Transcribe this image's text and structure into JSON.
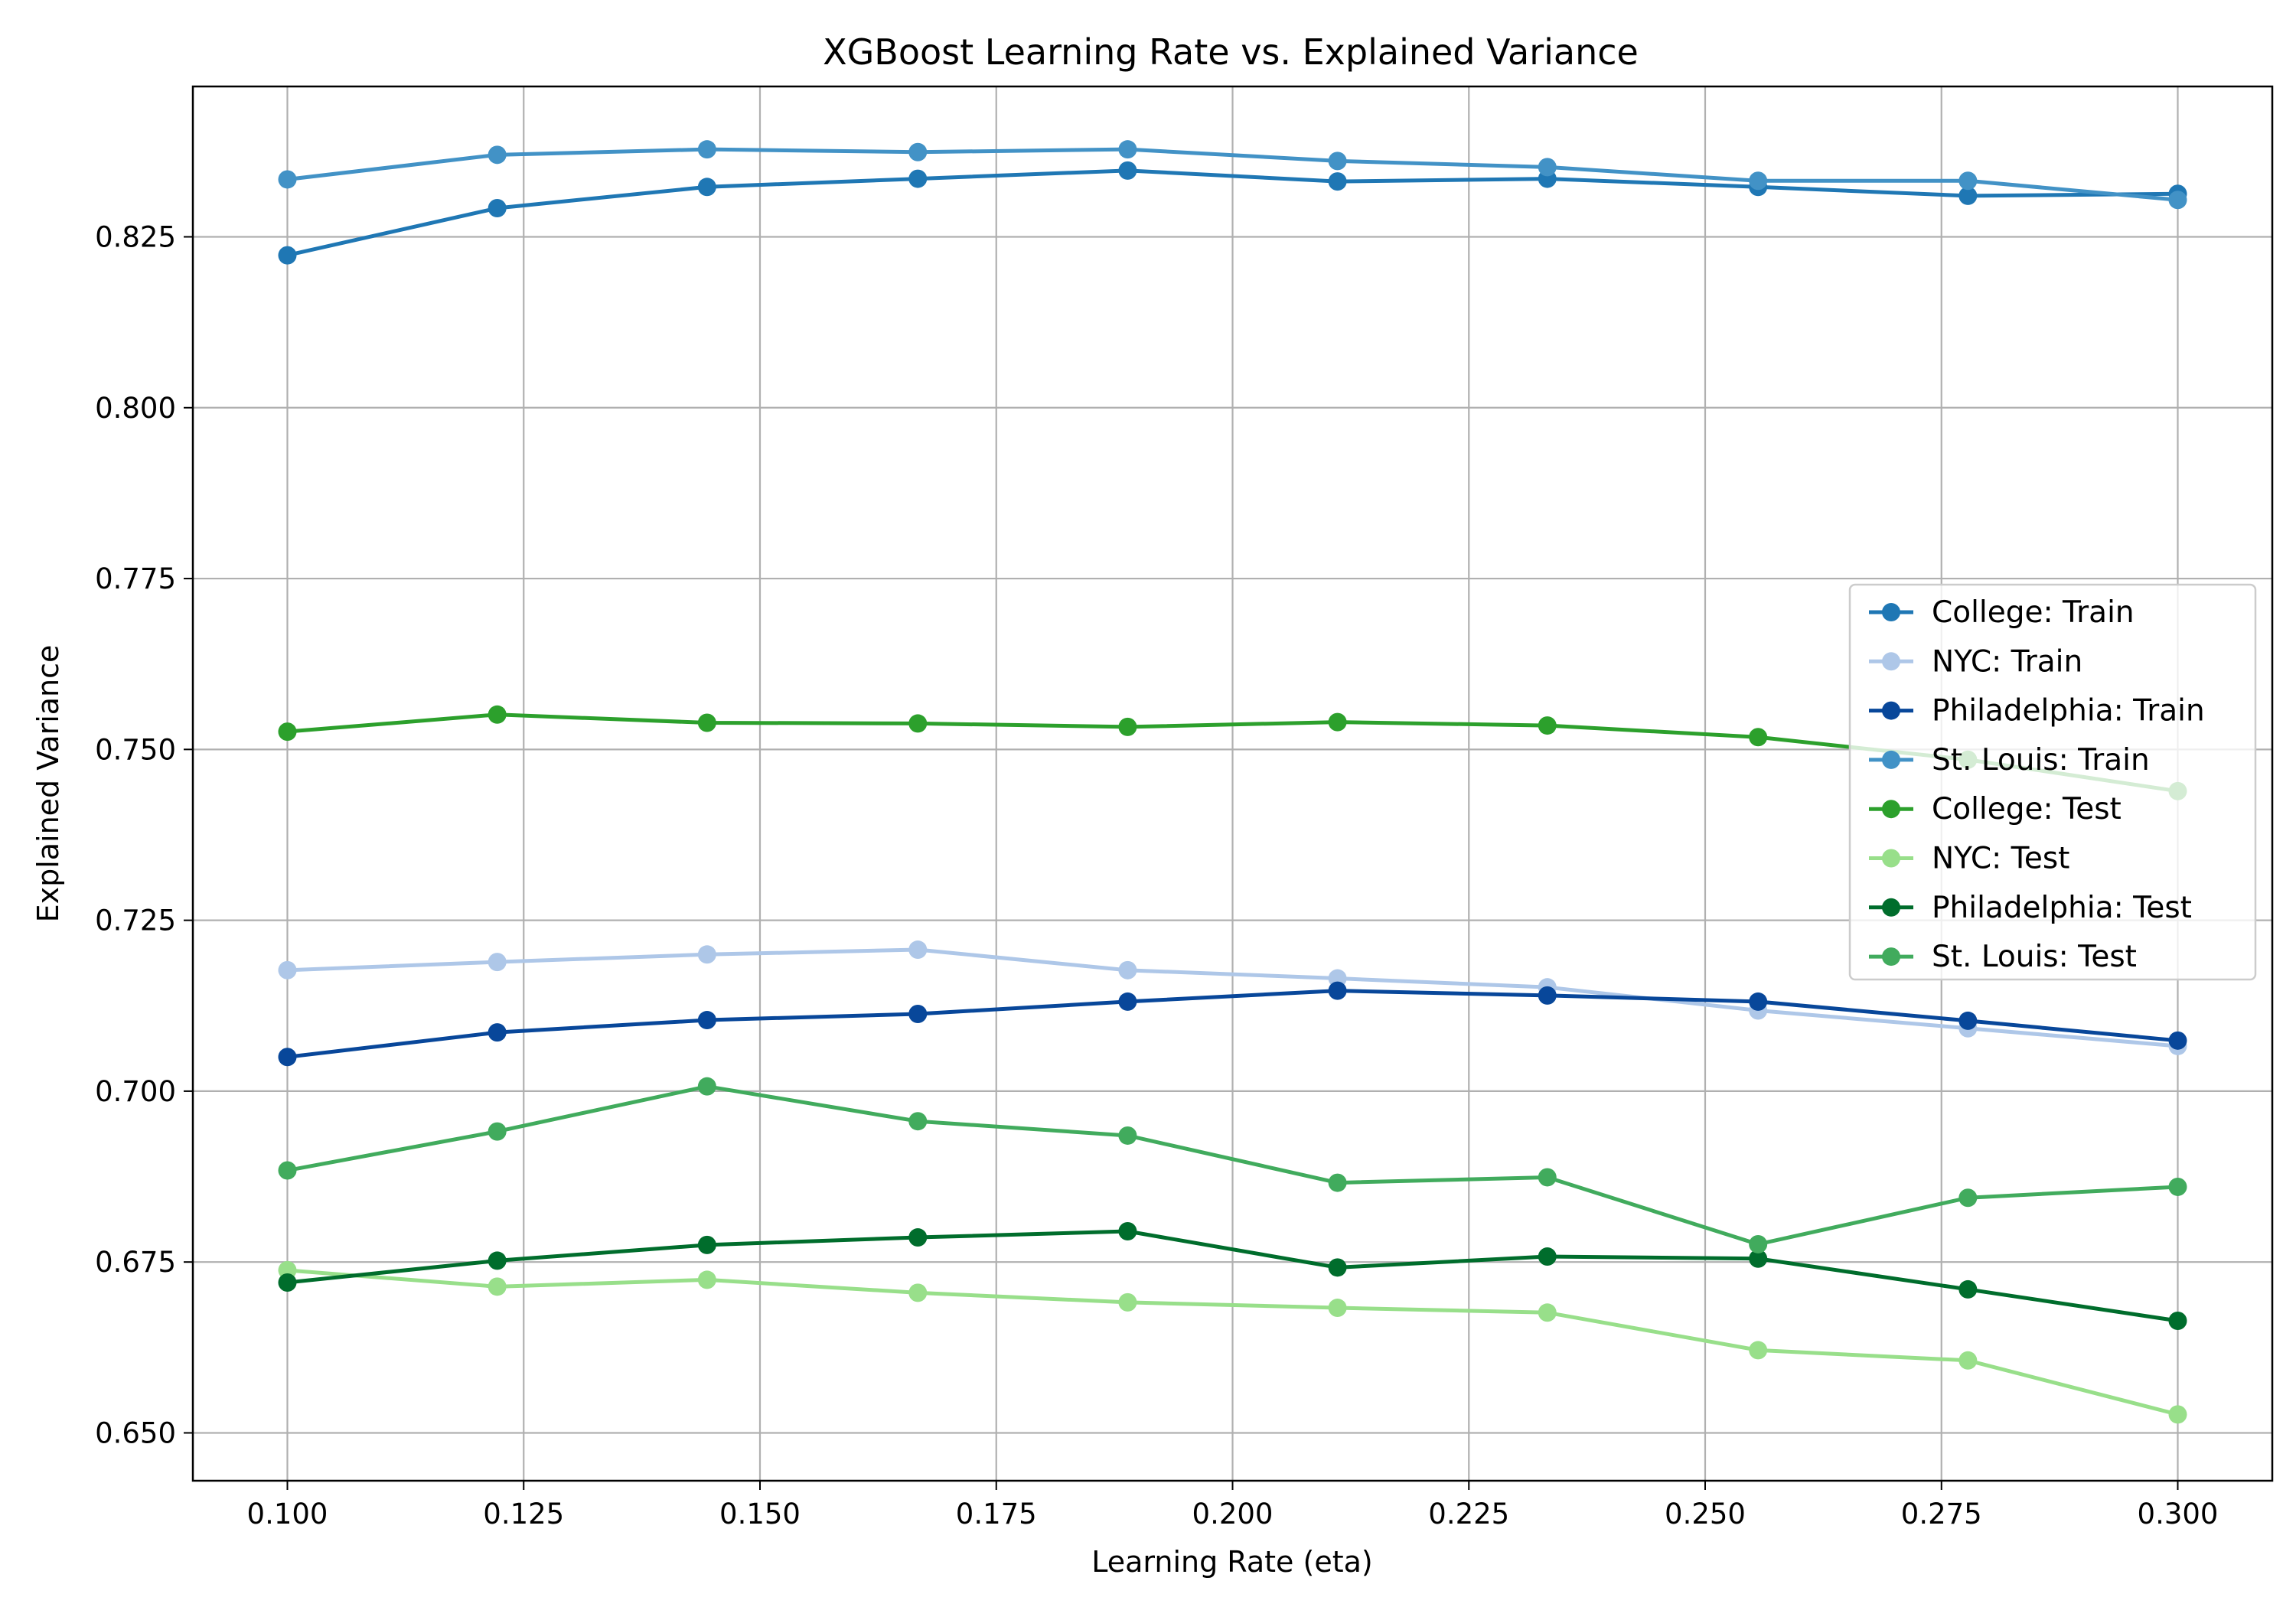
{
  "chart_data": {
    "type": "line",
    "title": "XGBoost Learning Rate vs. Explained Variance",
    "xlabel": "Learning Rate (eta)",
    "ylabel": "Explained Variance",
    "xlim": [
      0.09,
      0.31
    ],
    "ylim": [
      0.643,
      0.847
    ],
    "grid": true,
    "legend_position": "center-right",
    "x_ticks": [
      0.1,
      0.125,
      0.15,
      0.175,
      0.2,
      0.225,
      0.25,
      0.275,
      0.3
    ],
    "x_tick_labels": [
      "0.100",
      "0.125",
      "0.150",
      "0.175",
      "0.200",
      "0.225",
      "0.250",
      "0.275",
      "0.300"
    ],
    "y_ticks": [
      0.65,
      0.675,
      0.7,
      0.725,
      0.75,
      0.775,
      0.8,
      0.825
    ],
    "y_tick_labels": [
      "0.650",
      "0.675",
      "0.700",
      "0.725",
      "0.750",
      "0.775",
      "0.800",
      "0.825"
    ],
    "x": [
      0.1,
      0.1222,
      0.1444,
      0.1667,
      0.1889,
      0.2111,
      0.2333,
      0.2556,
      0.2778,
      0.3
    ],
    "series": [
      {
        "name": "College: Train",
        "color": "#1f77b4",
        "values": [
          0.8223,
          0.8292,
          0.8323,
          0.8335,
          0.8347,
          0.8331,
          0.8335,
          0.8323,
          0.831,
          0.8313
        ]
      },
      {
        "name": "NYC: Train",
        "color": "#aec7e8",
        "values": [
          0.7177,
          0.7189,
          0.72,
          0.7207,
          0.7177,
          0.7165,
          0.7152,
          0.7118,
          0.7092,
          0.7066
        ]
      },
      {
        "name": "Philadelphia: Train",
        "color": "#08479a",
        "values": [
          0.705,
          0.7086,
          0.7104,
          0.7113,
          0.7131,
          0.7147,
          0.714,
          0.7131,
          0.7103,
          0.7074
        ]
      },
      {
        "name": "St. Louis: Train",
        "color": "#4292c6",
        "values": [
          0.8334,
          0.837,
          0.8378,
          0.8374,
          0.8378,
          0.8361,
          0.8352,
          0.8332,
          0.8332,
          0.8304
        ]
      },
      {
        "name": "College: Test",
        "color": "#2ca02c",
        "values": [
          0.7526,
          0.7551,
          0.7539,
          0.7538,
          0.7533,
          0.754,
          0.7535,
          0.7518,
          0.7485,
          0.7439
        ]
      },
      {
        "name": "NYC: Test",
        "color": "#98df8a",
        "values": [
          0.6738,
          0.6714,
          0.6724,
          0.6705,
          0.6691,
          0.6683,
          0.6676,
          0.6621,
          0.6606,
          0.6527
        ]
      },
      {
        "name": "Philadelphia: Test",
        "color": "#006d2c",
        "values": [
          0.672,
          0.6752,
          0.6775,
          0.6786,
          0.6795,
          0.6742,
          0.6758,
          0.6755,
          0.671,
          0.6664
        ]
      },
      {
        "name": "St. Louis: Test",
        "color": "#41ab5d",
        "values": [
          0.6884,
          0.6941,
          0.7007,
          0.6956,
          0.6935,
          0.6866,
          0.6874,
          0.6776,
          0.6844,
          0.686
        ]
      }
    ]
  }
}
